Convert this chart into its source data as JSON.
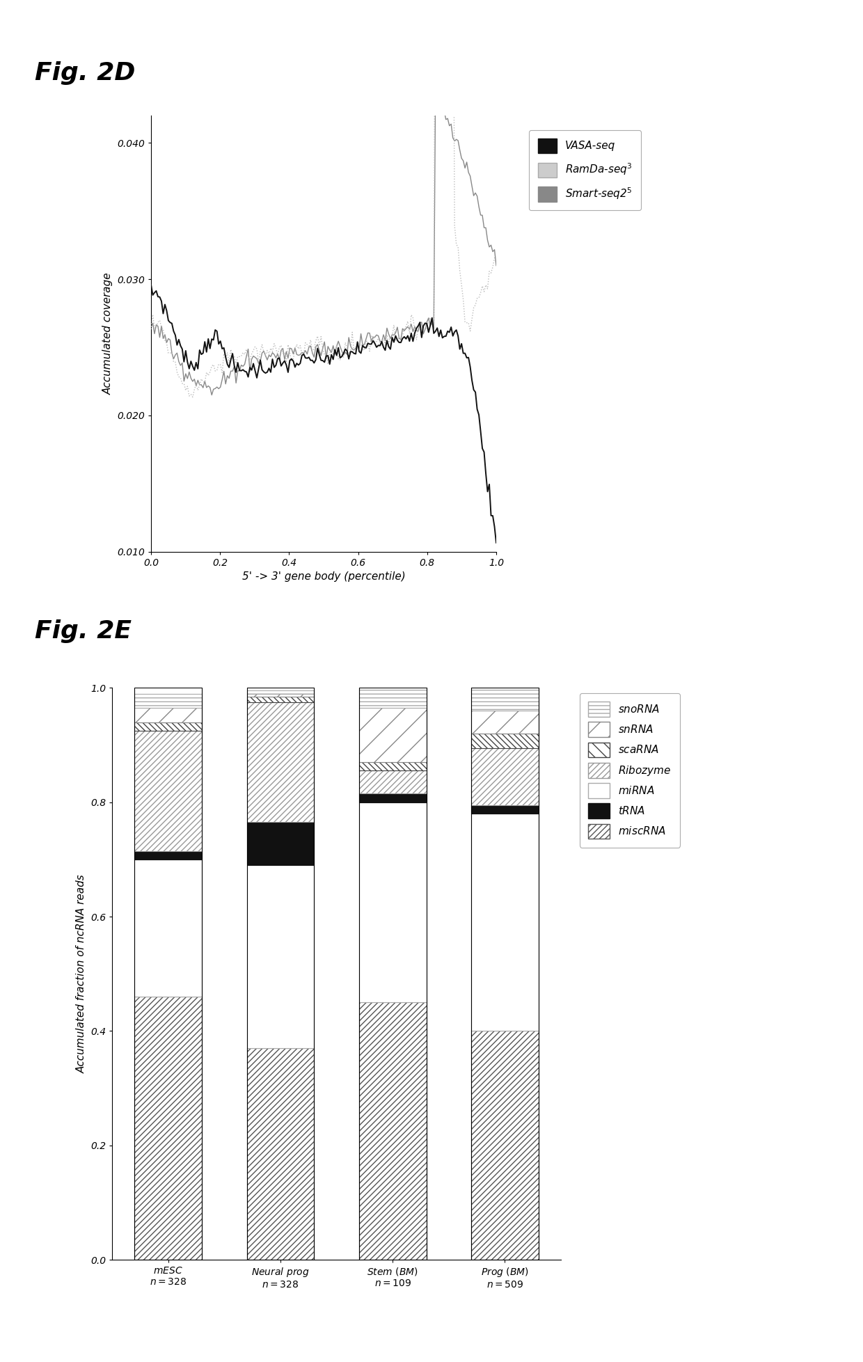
{
  "fig2d_title": "Fig. 2D",
  "fig2e_title": "Fig. 2E",
  "line_xlabel": "5' -> 3' gene body (percentile)",
  "line_ylabel": "Accumulated coverage",
  "line_ylim": [
    0.01,
    0.042
  ],
  "line_yticks": [
    0.01,
    0.02,
    0.03,
    0.04
  ],
  "line_xlim": [
    0.0,
    1.0
  ],
  "line_xticks": [
    0.0,
    0.2,
    0.4,
    0.6,
    0.8,
    1.0
  ],
  "bar_ylabel": "Accumulated fraction of ncRNA reads",
  "bar_ylim": [
    0.0,
    1.0
  ],
  "bar_yticks": [
    0.0,
    0.2,
    0.4,
    0.6,
    0.8,
    1.0
  ],
  "legend_labels_bar": [
    "snoRNA",
    "snRNA",
    "scaRNA",
    "Ribozyme",
    "miRNA",
    "tRNA",
    "miscRNA"
  ],
  "bar_data": {
    "miscRNA": [
      0.46,
      0.37,
      0.45,
      0.4
    ],
    "miRNA": [
      0.24,
      0.32,
      0.35,
      0.38
    ],
    "tRNA": [
      0.015,
      0.075,
      0.015,
      0.015
    ],
    "Ribozyme": [
      0.21,
      0.21,
      0.04,
      0.1
    ],
    "scaRNA": [
      0.015,
      0.01,
      0.015,
      0.025
    ],
    "snRNA": [
      0.025,
      0.005,
      0.095,
      0.04
    ],
    "snoRNA": [
      0.025,
      0.005,
      0.04,
      0.04
    ]
  },
  "background_color": "#ffffff"
}
